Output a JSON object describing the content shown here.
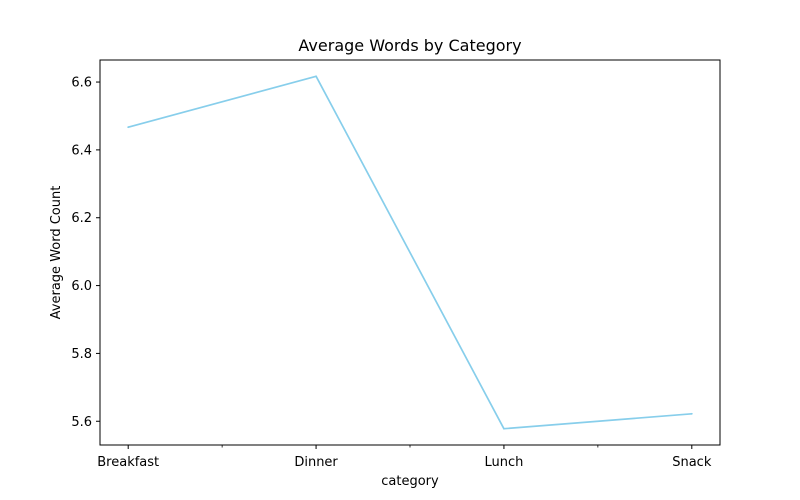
{
  "chart_data": {
    "type": "line",
    "title": "Average Words by Category",
    "xlabel": "category",
    "ylabel": "Average Word Count",
    "categories": [
      "Breakfast",
      "Dinner",
      "Lunch",
      "Snack"
    ],
    "series": [
      {
        "values": [
          6.467,
          6.617,
          5.578,
          5.622
        ],
        "color": "#87ceeb"
      }
    ],
    "ylim": [
      5.53,
      6.665
    ],
    "yticks": [
      "5.6",
      "5.8",
      "6.0",
      "6.2",
      "6.4",
      "6.6"
    ],
    "grid": false,
    "legend": "none"
  }
}
